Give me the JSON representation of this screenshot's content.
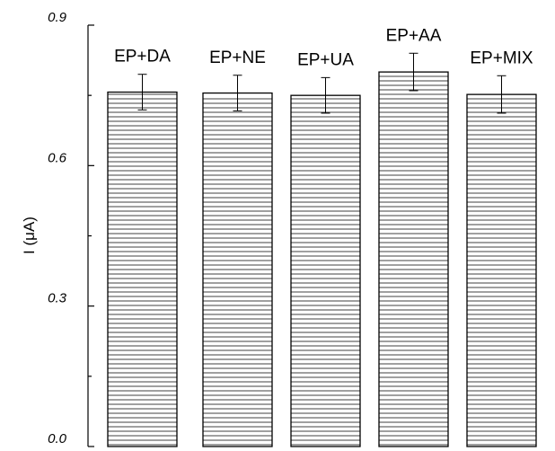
{
  "chart_data": {
    "type": "bar",
    "categories": [
      "EP+DA",
      "EP+NE",
      "EP+UA",
      "EP+AA",
      "EP+MIX"
    ],
    "values": [
      0.757,
      0.755,
      0.75,
      0.8,
      0.752
    ],
    "errors": [
      0.038,
      0.038,
      0.038,
      0.04,
      0.04
    ],
    "title": "",
    "xlabel": "",
    "ylabel": "I (μA)",
    "ylim": [
      0.0,
      0.9
    ],
    "yticks": [
      "0.0",
      "0.3",
      "0.6",
      "0.9"
    ],
    "grid": false,
    "bar_fill": "horizontal-hatch",
    "colors": {
      "bar_stroke": "#000000",
      "background": "#ffffff"
    }
  }
}
